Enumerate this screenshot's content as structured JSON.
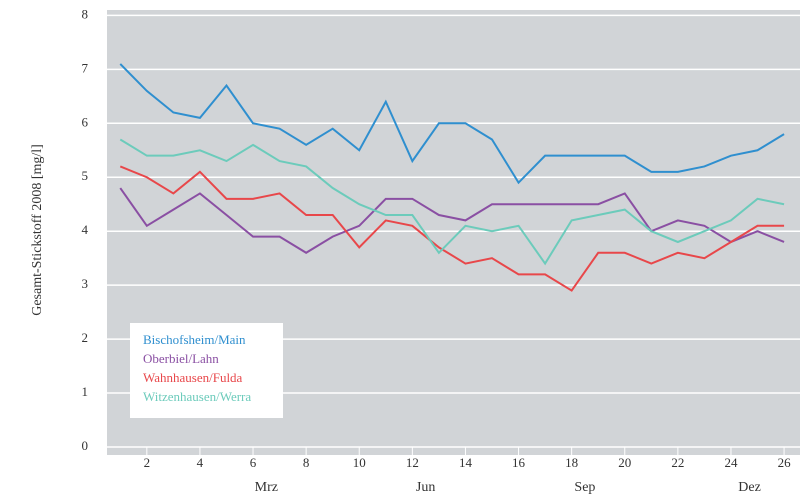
{
  "chart_data": {
    "type": "line",
    "y_label": "Gesamt-Stickstoff 2008 [mg/l]",
    "x": [
      1,
      2,
      3,
      4,
      5,
      6,
      7,
      8,
      9,
      10,
      11,
      12,
      13,
      14,
      15,
      16,
      17,
      18,
      19,
      20,
      21,
      22,
      23,
      24,
      25,
      26
    ],
    "xlim": [
      0.5,
      26.6
    ],
    "xticks": [
      2,
      4,
      6,
      8,
      10,
      12,
      14,
      16,
      18,
      20,
      22,
      24,
      26
    ],
    "x_period_labels": [
      {
        "value": 6.5,
        "label": "Mrz"
      },
      {
        "value": 12.5,
        "label": "Jun"
      },
      {
        "value": 18.5,
        "label": "Sep"
      },
      {
        "value": 24.7,
        "label": "Dez"
      }
    ],
    "ylim": [
      0,
      8.1
    ],
    "yticks": [
      0,
      1,
      2,
      3,
      4,
      5,
      6,
      7,
      8
    ],
    "grid": true,
    "legend": "lower left",
    "series": [
      {
        "name": "Bischofsheim/Main",
        "color": "#2f8fcf",
        "values": [
          7.1,
          6.6,
          6.2,
          6.1,
          6.7,
          6.0,
          5.9,
          5.6,
          5.9,
          5.5,
          6.4,
          5.3,
          6.0,
          6.0,
          5.7,
          4.9,
          5.4,
          5.4,
          5.4,
          5.4,
          5.1,
          5.1,
          5.2,
          5.4,
          5.5,
          5.8
        ]
      },
      {
        "name": "Oberbiel/Lahn",
        "color": "#8a4fa3",
        "values": [
          4.8,
          4.1,
          4.4,
          4.7,
          4.3,
          3.9,
          3.9,
          3.6,
          3.9,
          4.1,
          4.6,
          4.6,
          4.3,
          4.2,
          4.5,
          4.5,
          4.5,
          4.5,
          4.5,
          4.7,
          4.0,
          4.2,
          4.1,
          3.8,
          4.0,
          3.8
        ]
      },
      {
        "name": "Wahnhausen/Fulda",
        "color": "#e8474a",
        "values": [
          5.2,
          5.0,
          4.7,
          5.1,
          4.6,
          4.6,
          4.7,
          4.3,
          4.3,
          3.7,
          4.2,
          4.1,
          3.7,
          3.4,
          3.5,
          3.2,
          3.2,
          2.9,
          3.6,
          3.6,
          3.4,
          3.6,
          3.5,
          3.8,
          4.1,
          4.1
        ]
      },
      {
        "name": "Witzenhausen/Werra",
        "color": "#6ccbbb",
        "values": [
          5.7,
          5.4,
          5.4,
          5.5,
          5.3,
          5.6,
          5.3,
          5.2,
          4.8,
          4.5,
          4.3,
          4.3,
          3.6,
          4.1,
          4.0,
          4.1,
          3.4,
          4.2,
          4.3,
          4.4,
          4.0,
          3.8,
          4.0,
          4.2,
          4.6,
          4.5
        ]
      }
    ]
  }
}
